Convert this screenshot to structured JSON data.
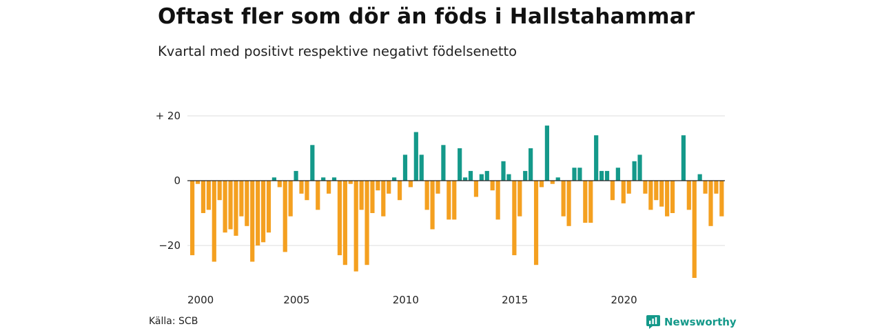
{
  "title": "Oftast fler som dör än föds i Hallstahammar",
  "subtitle": "Kvartal med positivt respektive negativt födelsenetto",
  "source": "Källa: SCB",
  "brand": {
    "name": "Newsworthy",
    "icon": "newsworthy-logo-icon"
  },
  "colors": {
    "positive": "#14998a",
    "negative": "#f4a020",
    "grid": "#dddddd",
    "zero": "#222222"
  },
  "chart_data": {
    "type": "bar",
    "x_unit": "quarter",
    "x_start": "2000 Q1",
    "x_tick_labels": [
      "2000",
      "2005",
      "2010",
      "2015",
      "2020"
    ],
    "y_tick_labels": [
      "+ 20",
      "0",
      "−20"
    ],
    "y_ticks": [
      20,
      0,
      -20
    ],
    "ylim": [
      -30,
      20
    ],
    "grid": true,
    "values": [
      -23,
      -1,
      -10,
      -9,
      -25,
      -6,
      -16,
      -15,
      -17,
      -11,
      -14,
      -25,
      -20,
      -19,
      -16,
      1,
      -2,
      -22,
      -11,
      3,
      -4,
      -6,
      11,
      -9,
      1,
      -4,
      1,
      -23,
      -26,
      -1,
      -28,
      -9,
      -26,
      -10,
      -3,
      -11,
      -4,
      1,
      -6,
      8,
      -2,
      15,
      8,
      -9,
      -15,
      -4,
      11,
      -12,
      -12,
      10,
      1,
      3,
      -5,
      2,
      3,
      -3,
      -12,
      6,
      2,
      -23,
      -11,
      3,
      10,
      -26,
      -2,
      17,
      -1,
      1,
      -11,
      -14,
      4,
      4,
      -13,
      -13,
      14,
      3,
      3,
      -6,
      4,
      -7,
      -4,
      6,
      8,
      -4,
      -9,
      -6,
      -8,
      -11,
      -10,
      0,
      14,
      -9,
      -30,
      2,
      -4,
      -14,
      -4,
      -11
    ]
  }
}
